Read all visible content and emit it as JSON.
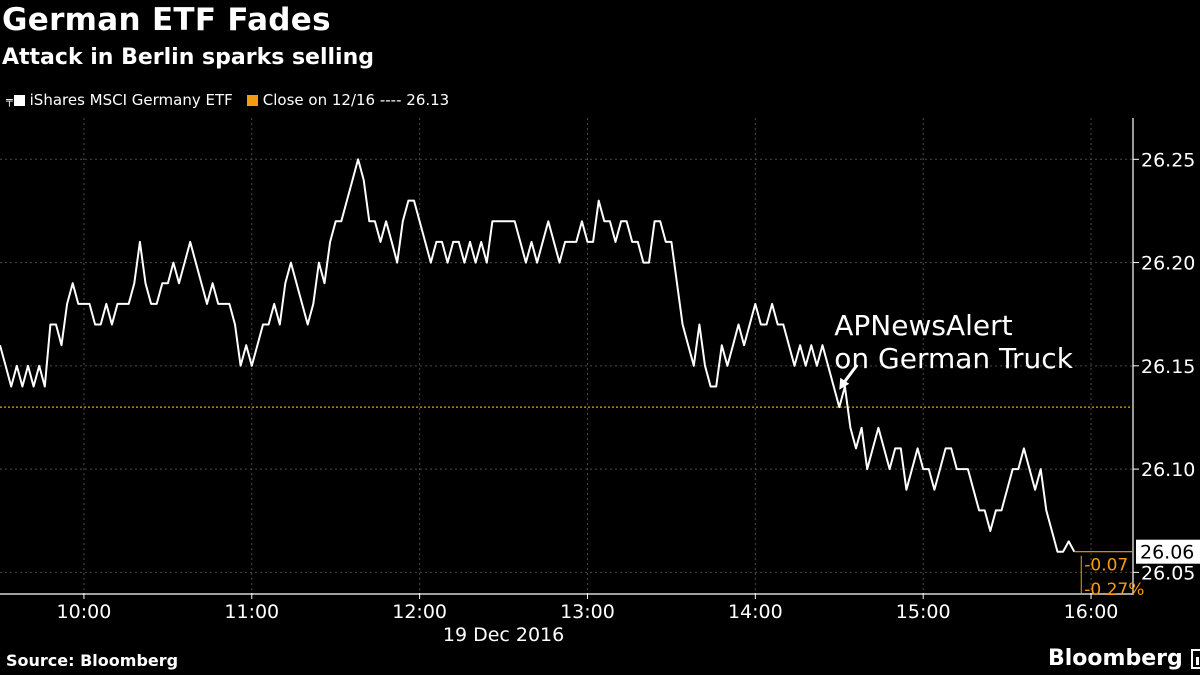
{
  "header": {
    "title": "German ETF Fades",
    "subtitle": "Attack in Berlin sparks selling"
  },
  "legend": {
    "series_label": "iShares MSCI Germany ETF",
    "reference_label": "Close on 12/16 ---- 26.13"
  },
  "footer": {
    "source": "Source: Bloomberg",
    "brand": "Bloomberg"
  },
  "colors": {
    "background": "#000000",
    "line": "#ffffff",
    "reference": "#f39c12",
    "grid": "#4a4a4a",
    "text": "#ffffff"
  },
  "icons": [
    "legend-line-icon",
    "bloomberg-logo-icon",
    "annotation-arrow-icon"
  ],
  "chart_data": {
    "type": "line",
    "title": "German ETF Fades",
    "subtitle": "Attack in Berlin sparks selling",
    "date_label": "19 Dec 2016",
    "x_ticks": [
      "10:00",
      "11:00",
      "12:00",
      "13:00",
      "14:00",
      "15:00",
      "16:00"
    ],
    "y_ticks": [
      "26.05",
      "26.10",
      "26.15",
      "26.20",
      "26.25"
    ],
    "xlim": [
      "09:30",
      "16:15"
    ],
    "ylim": [
      26.04,
      26.27
    ],
    "grid": true,
    "reference_line": {
      "label": "Close on 12/16",
      "value": 26.13
    },
    "last_value": {
      "price": "26.06",
      "change": "-0.07",
      "change_pct": "-0.27%"
    },
    "annotation": {
      "lines": [
        "APNewsAlert",
        "on German Truck"
      ],
      "time": "14:30",
      "value": 26.135
    },
    "series": [
      {
        "name": "iShares MSCI Germany ETF",
        "points": [
          [
            "09:30",
            26.16
          ],
          [
            "09:32",
            26.15
          ],
          [
            "09:34",
            26.14
          ],
          [
            "09:36",
            26.15
          ],
          [
            "09:38",
            26.14
          ],
          [
            "09:40",
            26.15
          ],
          [
            "09:42",
            26.14
          ],
          [
            "09:44",
            26.15
          ],
          [
            "09:46",
            26.14
          ],
          [
            "09:48",
            26.17
          ],
          [
            "09:50",
            26.17
          ],
          [
            "09:52",
            26.16
          ],
          [
            "09:54",
            26.18
          ],
          [
            "09:56",
            26.19
          ],
          [
            "09:58",
            26.18
          ],
          [
            "10:00",
            26.18
          ],
          [
            "10:02",
            26.18
          ],
          [
            "10:04",
            26.17
          ],
          [
            "10:06",
            26.17
          ],
          [
            "10:08",
            26.18
          ],
          [
            "10:10",
            26.17
          ],
          [
            "10:12",
            26.18
          ],
          [
            "10:14",
            26.18
          ],
          [
            "10:16",
            26.18
          ],
          [
            "10:18",
            26.19
          ],
          [
            "10:20",
            26.21
          ],
          [
            "10:22",
            26.19
          ],
          [
            "10:24",
            26.18
          ],
          [
            "10:26",
            26.18
          ],
          [
            "10:28",
            26.19
          ],
          [
            "10:30",
            26.19
          ],
          [
            "10:32",
            26.2
          ],
          [
            "10:34",
            26.19
          ],
          [
            "10:36",
            26.2
          ],
          [
            "10:38",
            26.21
          ],
          [
            "10:40",
            26.2
          ],
          [
            "10:42",
            26.19
          ],
          [
            "10:44",
            26.18
          ],
          [
            "10:46",
            26.19
          ],
          [
            "10:48",
            26.18
          ],
          [
            "10:50",
            26.18
          ],
          [
            "10:52",
            26.18
          ],
          [
            "10:54",
            26.17
          ],
          [
            "10:56",
            26.15
          ],
          [
            "10:58",
            26.16
          ],
          [
            "11:00",
            26.15
          ],
          [
            "11:02",
            26.16
          ],
          [
            "11:04",
            26.17
          ],
          [
            "11:06",
            26.17
          ],
          [
            "11:08",
            26.18
          ],
          [
            "11:10",
            26.17
          ],
          [
            "11:12",
            26.19
          ],
          [
            "11:14",
            26.2
          ],
          [
            "11:16",
            26.19
          ],
          [
            "11:18",
            26.18
          ],
          [
            "11:20",
            26.17
          ],
          [
            "11:22",
            26.18
          ],
          [
            "11:24",
            26.2
          ],
          [
            "11:26",
            26.19
          ],
          [
            "11:28",
            26.21
          ],
          [
            "11:30",
            26.22
          ],
          [
            "11:32",
            26.22
          ],
          [
            "11:34",
            26.23
          ],
          [
            "11:36",
            26.24
          ],
          [
            "11:38",
            26.25
          ],
          [
            "11:40",
            26.24
          ],
          [
            "11:42",
            26.22
          ],
          [
            "11:44",
            26.22
          ],
          [
            "11:46",
            26.21
          ],
          [
            "11:48",
            26.22
          ],
          [
            "11:50",
            26.21
          ],
          [
            "11:52",
            26.2
          ],
          [
            "11:54",
            26.22
          ],
          [
            "11:56",
            26.23
          ],
          [
            "11:58",
            26.23
          ],
          [
            "12:00",
            26.22
          ],
          [
            "12:02",
            26.21
          ],
          [
            "12:04",
            26.2
          ],
          [
            "12:06",
            26.21
          ],
          [
            "12:08",
            26.21
          ],
          [
            "12:10",
            26.2
          ],
          [
            "12:12",
            26.21
          ],
          [
            "12:14",
            26.21
          ],
          [
            "12:16",
            26.2
          ],
          [
            "12:18",
            26.21
          ],
          [
            "12:20",
            26.2
          ],
          [
            "12:22",
            26.21
          ],
          [
            "12:24",
            26.2
          ],
          [
            "12:26",
            26.22
          ],
          [
            "12:28",
            26.22
          ],
          [
            "12:30",
            26.22
          ],
          [
            "12:32",
            26.22
          ],
          [
            "12:34",
            26.22
          ],
          [
            "12:36",
            26.21
          ],
          [
            "12:38",
            26.2
          ],
          [
            "12:40",
            26.21
          ],
          [
            "12:42",
            26.2
          ],
          [
            "12:44",
            26.21
          ],
          [
            "12:46",
            26.22
          ],
          [
            "12:48",
            26.21
          ],
          [
            "12:50",
            26.2
          ],
          [
            "12:52",
            26.21
          ],
          [
            "12:54",
            26.21
          ],
          [
            "12:56",
            26.21
          ],
          [
            "12:58",
            26.22
          ],
          [
            "13:00",
            26.21
          ],
          [
            "13:02",
            26.21
          ],
          [
            "13:04",
            26.23
          ],
          [
            "13:06",
            26.22
          ],
          [
            "13:08",
            26.22
          ],
          [
            "13:10",
            26.21
          ],
          [
            "13:12",
            26.22
          ],
          [
            "13:14",
            26.22
          ],
          [
            "13:16",
            26.21
          ],
          [
            "13:18",
            26.21
          ],
          [
            "13:20",
            26.2
          ],
          [
            "13:22",
            26.2
          ],
          [
            "13:24",
            26.22
          ],
          [
            "13:26",
            26.22
          ],
          [
            "13:28",
            26.21
          ],
          [
            "13:30",
            26.21
          ],
          [
            "13:32",
            26.19
          ],
          [
            "13:34",
            26.17
          ],
          [
            "13:36",
            26.16
          ],
          [
            "13:38",
            26.15
          ],
          [
            "13:40",
            26.17
          ],
          [
            "13:42",
            26.15
          ],
          [
            "13:44",
            26.14
          ],
          [
            "13:46",
            26.14
          ],
          [
            "13:48",
            26.16
          ],
          [
            "13:50",
            26.15
          ],
          [
            "13:52",
            26.16
          ],
          [
            "13:54",
            26.17
          ],
          [
            "13:56",
            26.16
          ],
          [
            "13:58",
            26.17
          ],
          [
            "14:00",
            26.18
          ],
          [
            "14:02",
            26.17
          ],
          [
            "14:04",
            26.17
          ],
          [
            "14:06",
            26.18
          ],
          [
            "14:08",
            26.17
          ],
          [
            "14:10",
            26.17
          ],
          [
            "14:12",
            26.16
          ],
          [
            "14:14",
            26.15
          ],
          [
            "14:16",
            26.16
          ],
          [
            "14:18",
            26.15
          ],
          [
            "14:20",
            26.16
          ],
          [
            "14:22",
            26.15
          ],
          [
            "14:24",
            26.16
          ],
          [
            "14:26",
            26.15
          ],
          [
            "14:28",
            26.14
          ],
          [
            "14:30",
            26.13
          ],
          [
            "14:32",
            26.14
          ],
          [
            "14:34",
            26.12
          ],
          [
            "14:36",
            26.11
          ],
          [
            "14:38",
            26.12
          ],
          [
            "14:40",
            26.1
          ],
          [
            "14:42",
            26.11
          ],
          [
            "14:44",
            26.12
          ],
          [
            "14:46",
            26.11
          ],
          [
            "14:48",
            26.1
          ],
          [
            "14:50",
            26.11
          ],
          [
            "14:52",
            26.11
          ],
          [
            "14:54",
            26.09
          ],
          [
            "14:56",
            26.1
          ],
          [
            "14:58",
            26.11
          ],
          [
            "15:00",
            26.1
          ],
          [
            "15:02",
            26.1
          ],
          [
            "15:04",
            26.09
          ],
          [
            "15:06",
            26.1
          ],
          [
            "15:08",
            26.11
          ],
          [
            "15:10",
            26.11
          ],
          [
            "15:12",
            26.1
          ],
          [
            "15:14",
            26.1
          ],
          [
            "15:16",
            26.1
          ],
          [
            "15:18",
            26.09
          ],
          [
            "15:20",
            26.08
          ],
          [
            "15:22",
            26.08
          ],
          [
            "15:24",
            26.07
          ],
          [
            "15:26",
            26.08
          ],
          [
            "15:28",
            26.08
          ],
          [
            "15:30",
            26.09
          ],
          [
            "15:32",
            26.1
          ],
          [
            "15:34",
            26.1
          ],
          [
            "15:36",
            26.11
          ],
          [
            "15:38",
            26.1
          ],
          [
            "15:40",
            26.09
          ],
          [
            "15:42",
            26.1
          ],
          [
            "15:44",
            26.08
          ],
          [
            "15:46",
            26.07
          ],
          [
            "15:48",
            26.06
          ],
          [
            "15:50",
            26.06
          ],
          [
            "15:52",
            26.065
          ],
          [
            "15:54",
            26.06
          ]
        ]
      }
    ]
  }
}
